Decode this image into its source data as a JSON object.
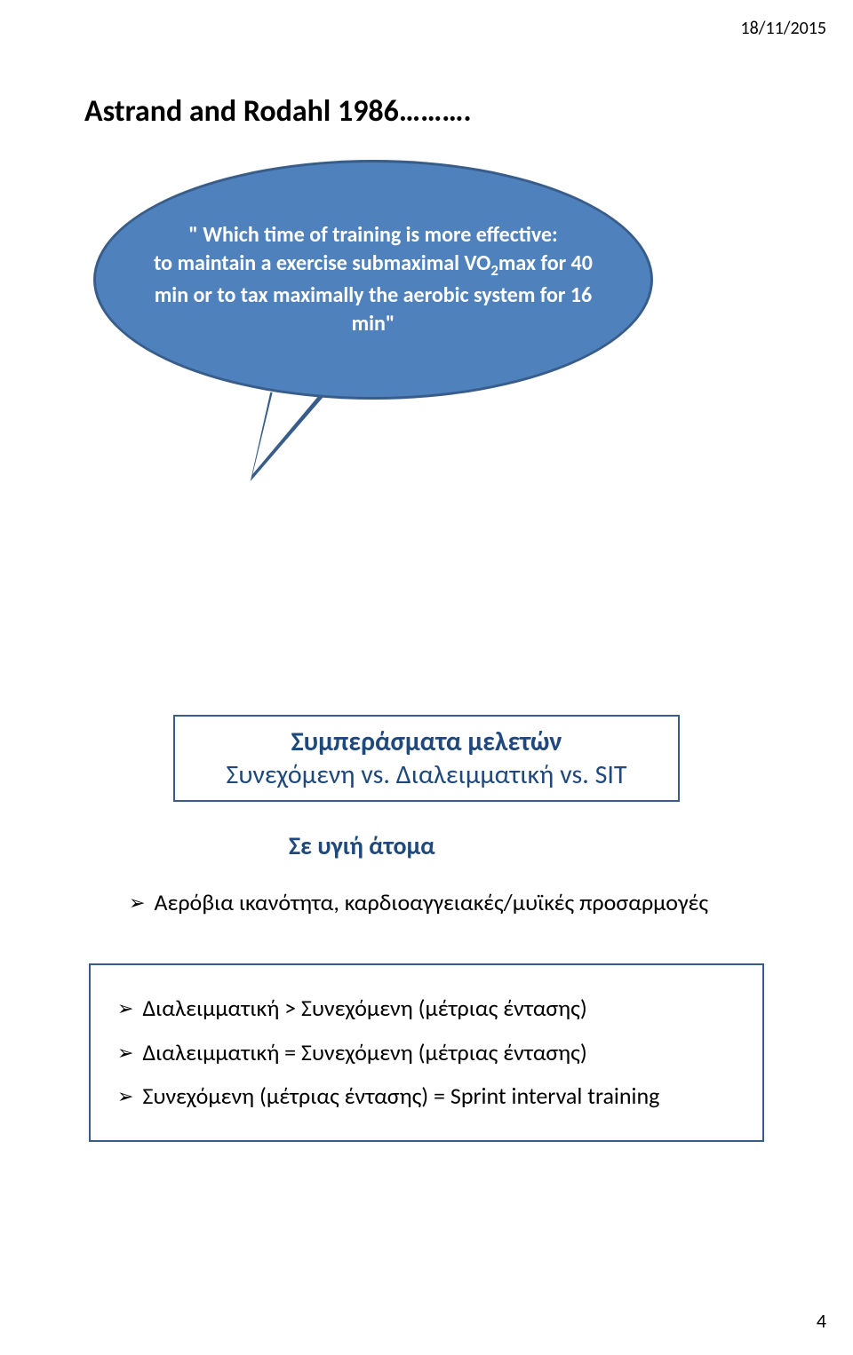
{
  "header": {
    "date": "18/11/2015"
  },
  "slide1": {
    "title": "Astrand and Rodahl 1986……….",
    "bubble_line1": "\" Which time of training is more effective:",
    "bubble_line2_a": "to maintain a  exercise submaximal  VO",
    "bubble_line2_sub": "2",
    "bubble_line2_b": "max for 40",
    "bubble_line3": "min  or to tax  maximally the aerobic system for 16",
    "bubble_line4": "min\""
  },
  "slide2": {
    "box1_line1": "Συμπεράσματα μελετών",
    "box1_line2": "Συνεχόμενη vs. Διαλειμματική vs. SIT",
    "subtitle": "Σε υγιή άτομα",
    "item1": "Αερόβια ικανότητα, καρδιοαγγειακές/μυϊκές προσαρμογές",
    "box2_item1": "Διαλειμματική  > Συνεχόμενη (μέτριας έντασης)",
    "box2_item2": "Διαλειμματική  =  Συνεχόμενη (μέτριας έντασης)",
    "box2_item3": "Συνεχόμενη (μέτριας έντασης) = Sprint interval training"
  },
  "footer": {
    "page_number": "4"
  },
  "styling": {
    "bubble_fill": "#4f81bd",
    "bubble_border": "#385d8a",
    "text_dark_blue": "#1f497d",
    "text_black": "#000000",
    "text_white": "#ffffff",
    "background": "#ffffff",
    "title_fontsize": 34,
    "bubble_fontsize": 24,
    "box_fontsize": 30,
    "body_fontsize": 26
  }
}
